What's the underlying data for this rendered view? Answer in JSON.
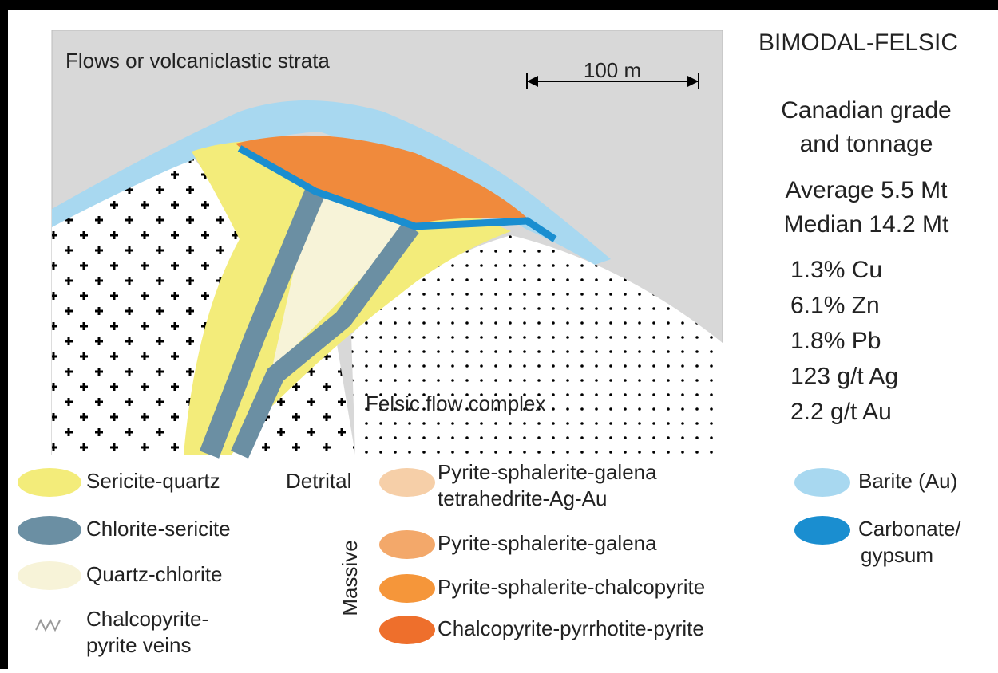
{
  "header": {
    "title": "BIMODAL-FELSIC"
  },
  "diagram": {
    "strata_label": "Flows or volcaniclastic strata",
    "scale_label": "100 m",
    "complex_label": "Felsic flow complex"
  },
  "stats": {
    "heading": [
      "Canadian grade",
      "and tonnage"
    ],
    "tonnage": [
      "Average 5.5 Mt",
      "Median 14.2 Mt"
    ],
    "grades": [
      "1.3% Cu",
      "6.1% Zn",
      "1.8% Pb",
      "123 g/t Ag",
      "2.2 g/t Au"
    ]
  },
  "legend": {
    "alteration": [
      {
        "label": [
          "Sericite-quartz"
        ]
      },
      {
        "label": [
          "Chlorite-sericite"
        ]
      },
      {
        "label": [
          "Quartz-chlorite"
        ]
      },
      {
        "label": [
          "Chalcopyrite-",
          "pyrite veins"
        ]
      }
    ],
    "detrital_label": "Detrital",
    "massive_label": "Massive",
    "ore": [
      {
        "label": [
          "Pyrite-sphalerite-galena",
          "tetrahedrite-Ag-Au"
        ]
      },
      {
        "label": [
          "Pyrite-sphalerite-galena"
        ]
      },
      {
        "label": [
          "Pyrite-sphalerite-chalcopyrite"
        ]
      },
      {
        "label": [
          "Chalcopyrite-pyrrhotite-pyrite"
        ]
      }
    ],
    "cap": [
      {
        "label": [
          "Barite (Au)"
        ]
      },
      {
        "label": [
          "Carbonate/",
          "gypsum"
        ]
      }
    ]
  }
}
